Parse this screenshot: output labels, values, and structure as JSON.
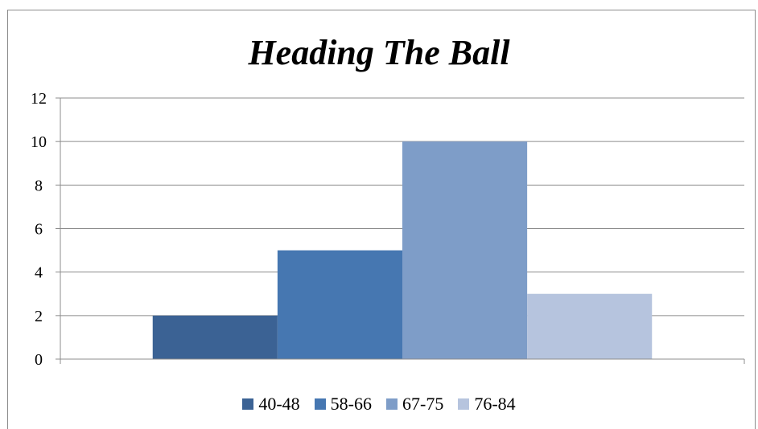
{
  "chart_data": {
    "type": "bar",
    "title": "Heading The Ball",
    "xlabel": "",
    "ylabel": "",
    "ylim": [
      0,
      12
    ],
    "yticks": [
      0,
      2,
      4,
      6,
      8,
      10,
      12
    ],
    "grid": true,
    "legend_position": "bottom",
    "series": [
      {
        "name": "40-48",
        "value": 2,
        "color": "#3b6294"
      },
      {
        "name": "58-66",
        "value": 5,
        "color": "#4677b1"
      },
      {
        "name": "67-75",
        "value": 10,
        "color": "#7e9dc8"
      },
      {
        "name": "76-84",
        "value": 3,
        "color": "#b6c4de"
      }
    ]
  }
}
